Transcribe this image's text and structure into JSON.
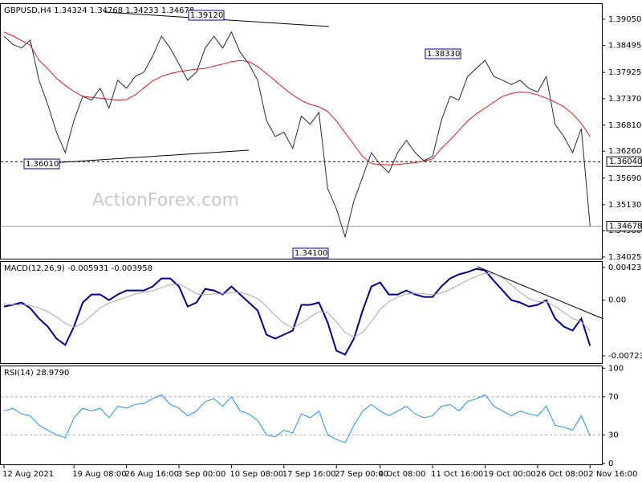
{
  "chart_data": [
    {
      "type": "line",
      "title": "GBPUSD,H4  1.34324 1.34768 1.34233 1.34678",
      "watermark": "ActionForex.com",
      "ylim": [
        1.3399,
        1.3937
      ],
      "yticks": [
        {
          "value": 1.3905,
          "label": "1.39050"
        },
        1.38495,
        1.37925,
        {
          "value": 1.3737,
          "label": "1.37370"
        },
        {
          "value": 1.3681,
          "label": "1.36810"
        },
        {
          "value": 1.3626,
          "label": "1.36260"
        },
        {
          "value": 1.3569,
          "label": "1.35690"
        },
        {
          "value": 1.3513,
          "label": "1.35130"
        },
        {
          "value": 1.3458,
          "label": "1.34580"
        },
        1.34025
      ],
      "annotations": [
        "1.39120",
        "1.38330",
        "1.36010",
        "1.34100"
      ],
      "hline": {
        "value": 1.3604,
        "label": "1.36040"
      },
      "last_price": {
        "value": 1.34678,
        "label": "1.34678"
      },
      "series": [
        {
          "color": "#1c2c3c",
          "values": [
            1.3869,
            1.3852,
            1.3844,
            1.3861,
            1.3776,
            1.3725,
            1.3666,
            1.3623,
            1.3691,
            1.3742,
            1.3734,
            1.3759,
            1.3717,
            1.3776,
            1.3759,
            1.3784,
            1.3793,
            1.3827,
            1.3869,
            1.3844,
            1.381,
            1.3776,
            1.3793,
            1.3844,
            1.3869,
            1.3844,
            1.3878,
            1.3835,
            1.381,
            1.3776,
            1.3691,
            1.3657,
            1.3666,
            1.3632,
            1.37,
            1.3683,
            1.3708,
            1.3547,
            1.3504,
            1.3445,
            1.3521,
            1.3572,
            1.3623,
            1.3598,
            1.3581,
            1.3623,
            1.3649,
            1.3623,
            1.3606,
            1.3615,
            1.3691,
            1.3742,
            1.3734,
            1.3784,
            1.3801,
            1.3818,
            1.3784,
            1.3776,
            1.3767,
            1.3776,
            1.3759,
            1.3751,
            1.3784,
            1.3683,
            1.3657,
            1.3623,
            1.3674,
            1.3468
          ]
        },
        {
          "color": "#e01818",
          "values": [
            1.3878,
            1.387,
            1.386,
            1.385,
            1.3818,
            1.38,
            1.378,
            1.3765,
            1.3752,
            1.3742,
            1.374,
            1.3738,
            1.3736,
            1.3734,
            1.3735,
            1.3745,
            1.376,
            1.3775,
            1.3784,
            1.379,
            1.3794,
            1.3797,
            1.3799,
            1.3801,
            1.3806,
            1.381,
            1.3815,
            1.3818,
            1.3815,
            1.3805,
            1.379,
            1.3775,
            1.3759,
            1.3745,
            1.3733,
            1.3725,
            1.372,
            1.371,
            1.369,
            1.3665,
            1.364,
            1.3615,
            1.36,
            1.3598,
            1.3597,
            1.3598,
            1.36,
            1.3602,
            1.3605,
            1.361,
            1.3632,
            1.365,
            1.367,
            1.369,
            1.3705,
            1.3717,
            1.373,
            1.3742,
            1.3748,
            1.3751,
            1.375,
            1.3745,
            1.3738,
            1.373,
            1.372,
            1.3705,
            1.3685,
            1.3657
          ]
        }
      ]
    },
    {
      "type": "line",
      "title": "MACD(12,26,9) -0.005931 -0.003958",
      "ylim": [
        -0.00817,
        0.00496
      ],
      "yticks": [
        0.004231,
        {
          "value": 0,
          "label": "0.00"
        },
        -0.00723
      ],
      "series": [
        {
          "color": "#00008b",
          "values": [
            -0.00083,
            -0.00062,
            -0.00031,
            -0.00104,
            -0.00239,
            -0.00343,
            -0.00499,
            -0.00582,
            -0.00343,
            -0.00031,
            0.00073,
            0.00073,
            0,
            0.00073,
            0.00125,
            0.00125,
            0.00125,
            0.00177,
            0.00281,
            0.00281,
            0.00177,
            -0.00083,
            -0.00031,
            0.00146,
            0.00125,
            0.00073,
            0.00177,
            0.00073,
            -0.00031,
            -0.00135,
            -0.00447,
            -0.00499,
            -0.00447,
            -0.00395,
            -0.00062,
            -0.00062,
            -0.00031,
            -0.00291,
            -0.00655,
            -0.00707,
            -0.00499,
            -0.00135,
            0.00177,
            0.00229,
            0.00073,
            0.00073,
            0.00125,
            0.00073,
            0.00042,
            0.00042,
            0.00177,
            0.00281,
            0.00333,
            0.00364,
            0.00406,
            0.00385,
            0.0025,
            0.00125,
            0,
            -0.00031,
            -0.00083,
            -0.00062,
            0,
            -0.00239,
            -0.00343,
            -0.00395,
            -0.00239,
            -0.005931
          ]
        },
        {
          "color": "#a8a8a8",
          "values": [
            -0.0005,
            -0.0006,
            -0.0006,
            -0.0007,
            -0.001,
            -0.0015,
            -0.0022,
            -0.003,
            -0.0035,
            -0.003,
            -0.002,
            -0.001,
            -0.0004,
            0,
            0.0004,
            0.0008,
            0.001,
            0.0012,
            0.0016,
            0.002,
            0.0021,
            0.0015,
            0.0008,
            0.0007,
            0.0008,
            0.0008,
            0.001,
            0.001,
            0.0007,
            0.0002,
            -0.0008,
            -0.002,
            -0.003,
            -0.0036,
            -0.003,
            -0.0022,
            -0.0015,
            -0.0016,
            -0.0028,
            -0.0042,
            -0.0048,
            -0.0042,
            -0.0028,
            -0.0012,
            -0.0002,
            0.0004,
            0.0008,
            0.0009,
            0.0008,
            0.0007,
            0.0009,
            0.0014,
            0.002,
            0.0026,
            0.0031,
            0.0035,
            0.0034,
            0.0029,
            0.002,
            0.001,
            0.0002,
            -0.0002,
            -0.0002,
            -0.0008,
            -0.0016,
            -0.0024,
            -0.0028,
            -0.003958
          ]
        }
      ]
    },
    {
      "type": "line",
      "title": "RSI(14) 28.9790",
      "ylim": [
        -1,
        102
      ],
      "yticks": [
        100,
        70,
        30,
        0
      ],
      "levels": [
        70,
        30
      ],
      "categories": [
        "12 Aug 2021",
        null,
        null,
        null,
        null,
        null,
        null,
        null,
        "19 Aug 08:00",
        null,
        null,
        null,
        null,
        null,
        "26 Aug 16:00",
        null,
        null,
        null,
        null,
        null,
        "3 Sep 00:00",
        null,
        null,
        null,
        null,
        null,
        "10 Sep 08:00",
        null,
        null,
        null,
        null,
        null,
        "17 Sep 16:00",
        null,
        null,
        null,
        null,
        null,
        "27 Sep 00:00",
        null,
        null,
        null,
        null,
        "4 Oct 08:00",
        null,
        null,
        null,
        null,
        null,
        "11 Oct 16:00",
        null,
        null,
        null,
        null,
        null,
        "19 Oct 00:00",
        null,
        null,
        null,
        null,
        null,
        "26 Oct 08:00",
        null,
        null,
        null,
        null,
        null,
        "2 Nov 16:00"
      ],
      "series": [
        {
          "color": "#1e90ff",
          "values": [
            55,
            58,
            52,
            50,
            40,
            35,
            30,
            27,
            48,
            58,
            55,
            58,
            48,
            60,
            58,
            62,
            63,
            68,
            72,
            62,
            58,
            50,
            55,
            65,
            68,
            60,
            70,
            55,
            52,
            45,
            30,
            28,
            35,
            32,
            52,
            48,
            55,
            30,
            25,
            22,
            40,
            55,
            62,
            55,
            50,
            55,
            60,
            52,
            48,
            50,
            60,
            62,
            55,
            65,
            68,
            72,
            60,
            55,
            50,
            55,
            52,
            50,
            60,
            40,
            38,
            35,
            50,
            29
          ]
        }
      ]
    }
  ]
}
